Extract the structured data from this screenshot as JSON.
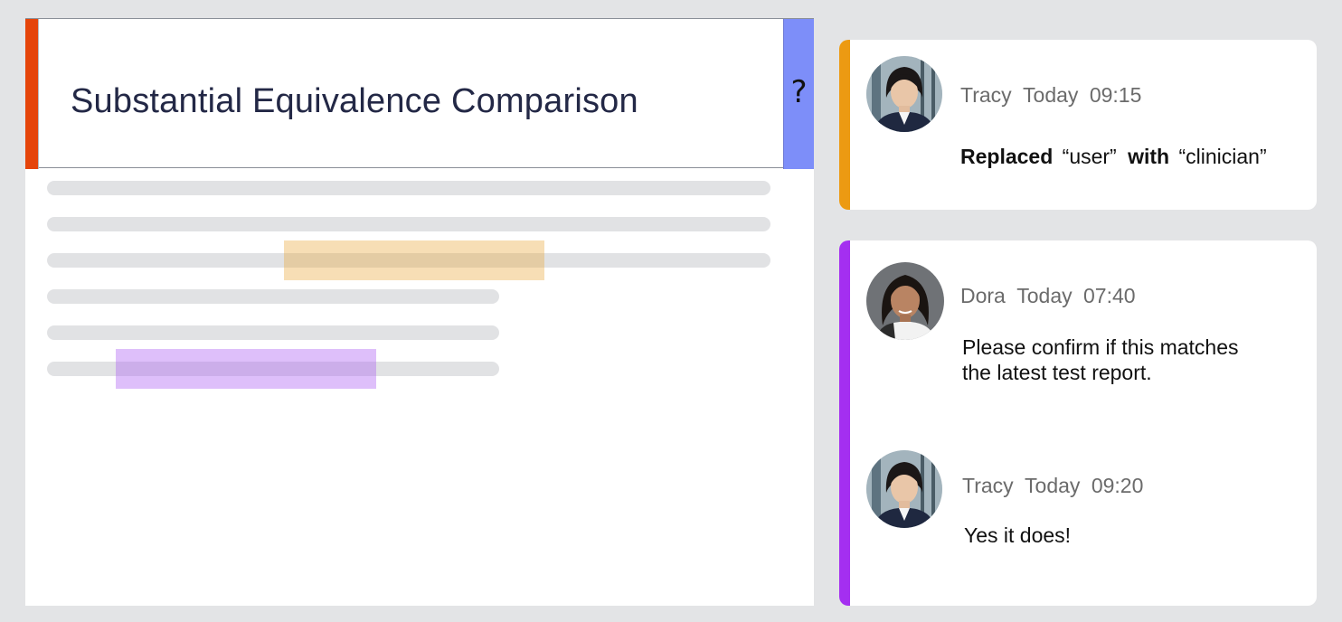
{
  "document": {
    "title": "Substantial Equivalence Comparison",
    "help_label": "?"
  },
  "comments": {
    "change": {
      "author": "Tracy",
      "date_label": "Today",
      "time": "09:15",
      "action_word": "Replaced",
      "old_text": "“user”",
      "joiner_word": "with",
      "new_text": "“clinician”"
    },
    "thread": [
      {
        "author": "Dora",
        "date_label": "Today",
        "time": "07:40",
        "message_line1": "Please confirm if this matches",
        "message_line2": "the latest test report."
      },
      {
        "author": "Tracy",
        "date_label": "Today",
        "time": "09:20",
        "message_line1": "Yes it does!"
      }
    ]
  },
  "colors": {
    "header_accent": "#e5440a",
    "help_button": "#7d8ef9",
    "change_accent": "#ec9a12",
    "thread_accent": "#a42ff0",
    "highlight_orange": "#f5deb7",
    "highlight_purple": "#dfbaf8"
  }
}
